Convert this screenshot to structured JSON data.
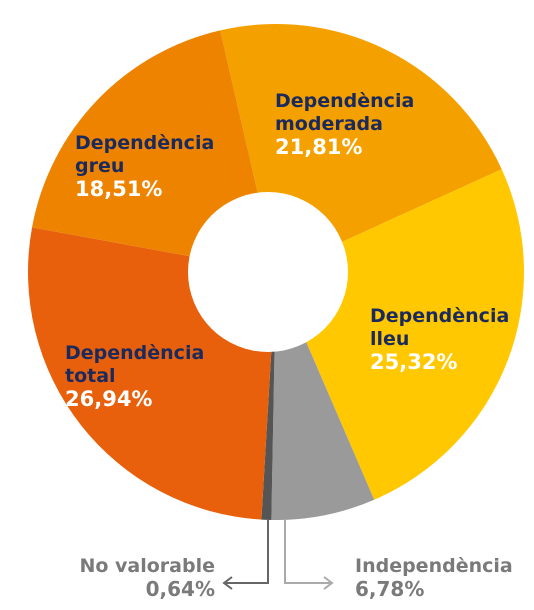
{
  "chart_data": {
    "type": "donut",
    "categories": [
      "Dependència moderada",
      "Dependència lleu",
      "Independència",
      "No valorable",
      "Dependència total",
      "Dependència greu"
    ],
    "values": [
      21.81,
      25.32,
      6.78,
      0.64,
      26.94,
      18.51
    ],
    "value_labels": [
      "21,81%",
      "25,32%",
      "6,78%",
      "0,64%",
      "26,94%",
      "18,51%"
    ],
    "colors": [
      "#f4a100",
      "#ffc800",
      "#9a9a9a",
      "#555555",
      "#e8600c",
      "#ee8300"
    ]
  }
}
